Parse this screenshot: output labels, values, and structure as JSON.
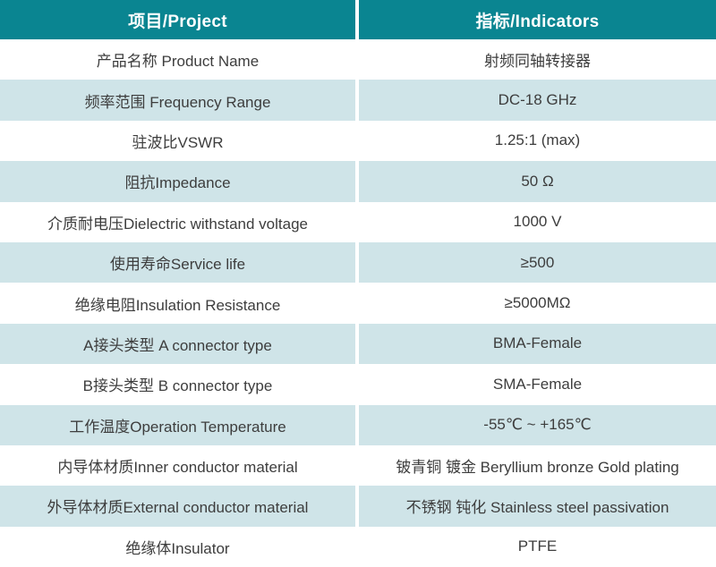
{
  "table": {
    "header": {
      "project": "项目/Project",
      "indicators": "指标/Indicators"
    },
    "rows": [
      {
        "project": "产品名称 Product Name",
        "indicator": "射频同轴转接器"
      },
      {
        "project": "频率范围 Frequency Range",
        "indicator": "DC-18 GHz"
      },
      {
        "project": "驻波比VSWR",
        "indicator": "1.25:1 (max)"
      },
      {
        "project": "阻抗Impedance",
        "indicator": "50 Ω"
      },
      {
        "project": "介质耐电压Dielectric withstand voltage",
        "indicator": "1000 V"
      },
      {
        "project": "使用寿命Service life",
        "indicator": "≥500"
      },
      {
        "project": "绝缘电阻Insulation Resistance",
        "indicator": "≥5000MΩ"
      },
      {
        "project": "A接头类型 A connector type",
        "indicator": "BMA-Female"
      },
      {
        "project": "B接头类型 B connector type",
        "indicator": "SMA-Female"
      },
      {
        "project": "工作温度Operation Temperature",
        "indicator": "-55℃ ~ +165℃"
      },
      {
        "project": "内导体材质Inner conductor material",
        "indicator": "铍青铜 镀金 Beryllium bronze Gold plating"
      },
      {
        "project": "外导体材质External conductor material",
        "indicator": "不锈钢 钝化 Stainless steel passivation"
      },
      {
        "project": "绝缘体Insulator",
        "indicator": "PTFE"
      }
    ],
    "colors": {
      "header_bg": "#0a8591",
      "header_text": "#ffffff",
      "stripe_bg": "#cfe4e8",
      "row_bg": "#ffffff",
      "text": "#3d3d3d",
      "divider": "#ffffff"
    }
  }
}
